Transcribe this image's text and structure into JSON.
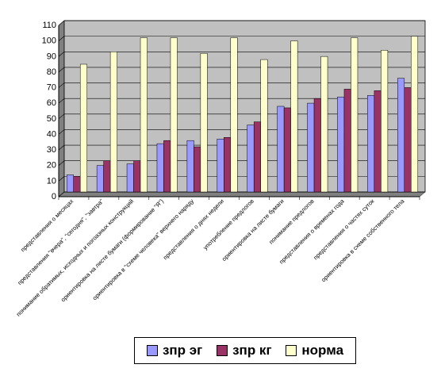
{
  "colors": {
    "plot_background": "#C0C0C0",
    "gridline": "#000000",
    "series": [
      "#9999FF",
      "#993366",
      "#FFFFCC"
    ]
  },
  "chart_data": {
    "type": "bar",
    "title": "",
    "xlabel": "",
    "ylabel": "",
    "ylim": [
      0,
      110
    ],
    "yticks": [
      0,
      10,
      20,
      30,
      40,
      50,
      60,
      70,
      80,
      90,
      100,
      110
    ],
    "grid": true,
    "legend_position": "bottom",
    "categories": [
      "представления о месяцах",
      "представления \"вчера\", \"сегодня\", \"завтра\"",
      "понимание обратимых, исходных и погоазных конструкций",
      "ориентировка на листе бумаги (формирование \"Я\")",
      "ориентировка в \"схеме человека\" верхнего наряду",
      "представления о днях недели",
      "употребление предлогов",
      "ориентировка на листе бумаги",
      "понимание предлогов",
      "представления о временах года",
      "представления о частях суток",
      "ориентировка в схеме собственного тела"
    ],
    "series": [
      {
        "name": "зпр эг",
        "values": [
          11,
          17,
          18,
          31,
          33,
          34,
          43,
          55,
          57,
          61,
          62,
          73
        ]
      },
      {
        "name": "зпр кг",
        "values": [
          10,
          20,
          20,
          33,
          29,
          35,
          45,
          54,
          60,
          66,
          65,
          67
        ]
      },
      {
        "name": "норма",
        "values": [
          82,
          90,
          99,
          99,
          89,
          99,
          85,
          97,
          87,
          99,
          91,
          100
        ]
      }
    ]
  }
}
